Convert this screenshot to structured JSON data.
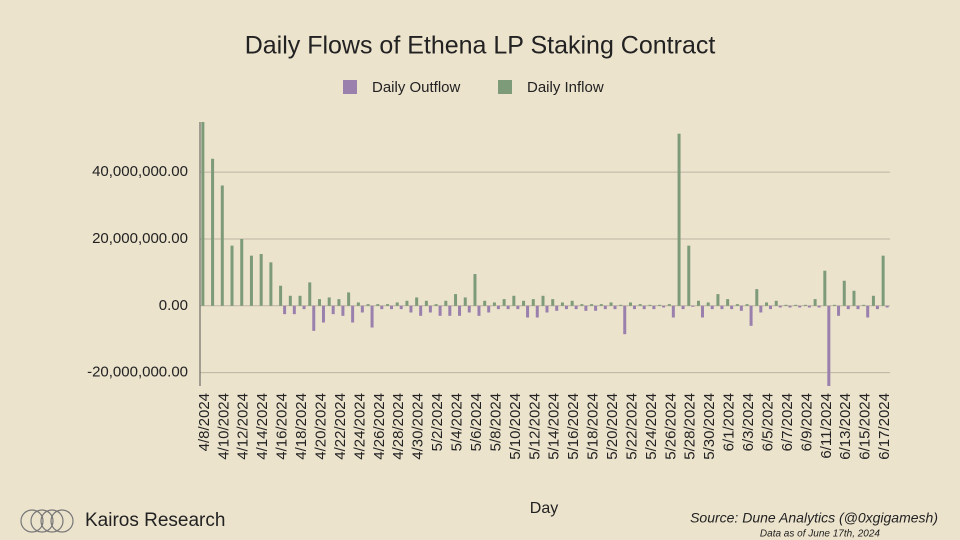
{
  "brand": "Kairos Research",
  "chart_data": {
    "type": "bar",
    "title": "Daily Flows of Ethena LP Staking Contract",
    "x_label": "Day",
    "source": "Source: Dune Analytics (@0xgigamesh)",
    "note": "Data as of June 17th, 2024",
    "grid": true,
    "legend": "top",
    "categories": [
      "4/8/2024",
      null,
      "4/10/2024",
      null,
      "4/12/2024",
      null,
      "4/14/2024",
      null,
      "4/16/2024",
      null,
      "4/18/2024",
      null,
      "4/20/2024",
      null,
      "4/22/2024",
      null,
      "4/24/2024",
      null,
      "4/26/2024",
      null,
      "4/28/2024",
      null,
      "4/30/2024",
      null,
      "5/2/2024",
      null,
      "5/4/2024",
      null,
      "5/6/2024",
      null,
      "5/8/2024",
      null,
      "5/10/2024",
      null,
      "5/12/2024",
      null,
      "5/14/2024",
      null,
      "5/16/2024",
      null,
      "5/18/2024",
      null,
      "5/20/2024",
      null,
      "5/22/2024",
      null,
      "5/24/2024",
      null,
      "5/26/2024",
      null,
      "5/28/2024",
      null,
      "5/30/2024",
      null,
      "6/1/2024",
      null,
      "6/3/2024",
      null,
      "6/5/2024",
      null,
      "6/7/2024",
      null,
      "6/9/2024",
      null,
      "6/11/2024",
      null,
      "6/13/2024",
      null,
      "6/15/2024",
      null,
      "6/17/2024"
    ],
    "series": [
      {
        "name": "Daily Outflow",
        "color": "#9a80ad",
        "values": [
          0,
          0,
          0,
          0,
          0,
          0,
          0,
          0,
          -2500000,
          -2500000,
          -1000000,
          -7500000,
          -5000000,
          -2500000,
          -3000000,
          -5000000,
          -2000000,
          -6500000,
          -1000000,
          -1000000,
          -1000000,
          -2000000,
          -3000000,
          -2000000,
          -3000000,
          -3000000,
          -3000000,
          -2000000,
          -3000000,
          -2000000,
          -1000000,
          -1000000,
          -1000000,
          -3500000,
          -3500000,
          -2000000,
          -1500000,
          -1000000,
          -1000000,
          -1500000,
          -1500000,
          -1000000,
          -1000000,
          -8500000,
          -1000000,
          -1000000,
          -1000000,
          -500000,
          -3500000,
          -1000000,
          -300000,
          -3500000,
          -1000000,
          -1000000,
          -1000000,
          -1500000,
          -6000000,
          -2000000,
          -1000000,
          -500000,
          -500000,
          -500000,
          -500000,
          -500000,
          -24000000,
          -3000000,
          -1000000,
          -1000000,
          -3500000,
          -1000000,
          -500000
        ]
      },
      {
        "name": "Daily Inflow",
        "color": "#7e9b79",
        "values": [
          55000000,
          44000000,
          36000000,
          18000000,
          20000000,
          15000000,
          15500000,
          13000000,
          6000000,
          3000000,
          3000000,
          7000000,
          2000000,
          2500000,
          2000000,
          4000000,
          1000000,
          500000,
          500000,
          500000,
          1000000,
          1500000,
          2500000,
          1500000,
          500000,
          1500000,
          3500000,
          2500000,
          9500000,
          1500000,
          1000000,
          2000000,
          3000000,
          1500000,
          2000000,
          3000000,
          2000000,
          1000000,
          1500000,
          500000,
          500000,
          500000,
          1000000,
          300000,
          1000000,
          500000,
          300000,
          300000,
          500000,
          51500000,
          18000000,
          1500000,
          1000000,
          3500000,
          2000000,
          500000,
          500000,
          5000000,
          1000000,
          1500000,
          300000,
          300000,
          300000,
          2000000,
          10500000,
          300000,
          7500000,
          4500000,
          300000,
          3000000,
          15000000
        ]
      }
    ],
    "ylim": [
      -24000000,
      55000000
    ],
    "yticks": [
      {
        "value": -20000000,
        "label": "-20,000,000.00"
      },
      {
        "value": 0,
        "label": "0.00"
      },
      {
        "value": 20000000,
        "label": "20,000,000.00"
      },
      {
        "value": 40000000,
        "label": "40,000,000.00"
      }
    ]
  }
}
